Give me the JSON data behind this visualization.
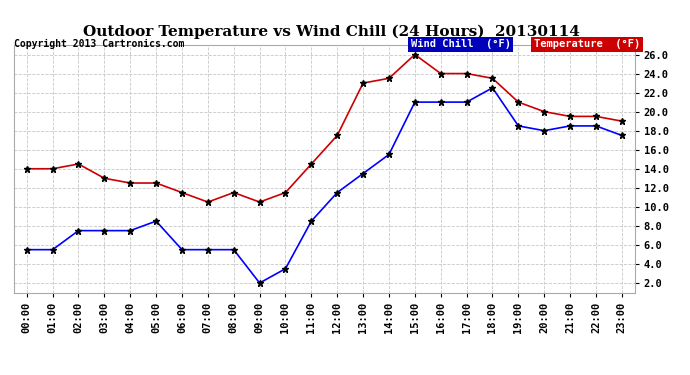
{
  "title": "Outdoor Temperature vs Wind Chill (24 Hours)  20130114",
  "copyright": "Copyright 2013 Cartronics.com",
  "x_labels": [
    "00:00",
    "01:00",
    "02:00",
    "03:00",
    "04:00",
    "05:00",
    "06:00",
    "07:00",
    "08:00",
    "09:00",
    "10:00",
    "11:00",
    "12:00",
    "13:00",
    "14:00",
    "15:00",
    "16:00",
    "17:00",
    "18:00",
    "19:00",
    "20:00",
    "21:00",
    "22:00",
    "23:00"
  ],
  "wind_chill": [
    5.5,
    5.5,
    7.5,
    7.5,
    7.5,
    8.5,
    5.5,
    5.5,
    5.5,
    2.0,
    3.5,
    8.5,
    11.5,
    13.5,
    15.5,
    21.0,
    21.0,
    21.0,
    22.5,
    18.5,
    18.0,
    18.5,
    18.5,
    17.5
  ],
  "temperature": [
    14.0,
    14.0,
    14.5,
    13.0,
    12.5,
    12.5,
    11.5,
    10.5,
    11.5,
    10.5,
    11.5,
    14.5,
    17.5,
    23.0,
    23.5,
    26.0,
    24.0,
    24.0,
    23.5,
    21.0,
    20.0,
    19.5,
    19.5,
    19.0
  ],
  "wind_chill_color": "#0000ff",
  "temperature_color": "#cc0000",
  "marker_color": "#000000",
  "ylim": [
    1.0,
    27.0
  ],
  "yticks": [
    2.0,
    4.0,
    6.0,
    8.0,
    10.0,
    12.0,
    14.0,
    16.0,
    18.0,
    20.0,
    22.0,
    24.0,
    26.0
  ],
  "grid_color": "#c8c8c8",
  "background_color": "#ffffff",
  "legend_wc_bg": "#0000bb",
  "legend_temp_bg": "#cc0000",
  "legend_text_color": "#ffffff",
  "title_fontsize": 11,
  "copyright_fontsize": 7,
  "tick_fontsize": 7.5,
  "legend_fontsize": 7.5
}
